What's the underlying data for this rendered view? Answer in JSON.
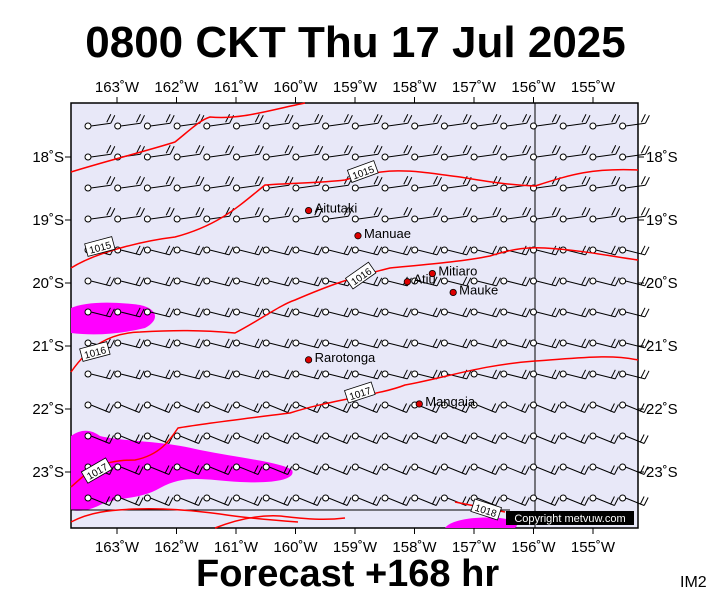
{
  "header": {
    "title": "0800 CKT Thu 17 Jul 2025"
  },
  "footer": {
    "forecast": "Forecast +168 hr",
    "image_id": "IM2"
  },
  "map": {
    "lon_labels": [
      "163˚W",
      "162˚W",
      "161˚W",
      "160˚W",
      "159˚W",
      "158˚W",
      "157˚W",
      "156˚W",
      "155˚W"
    ],
    "lat_labels": [
      "18˚S",
      "19˚S",
      "20˚S",
      "21˚S",
      "22˚S",
      "23˚S"
    ],
    "isobar_labels": [
      "1015",
      "1015",
      "1016",
      "1016",
      "1017",
      "1017",
      "1018"
    ],
    "places": [
      {
        "name": "Aitutaki",
        "lat": -18.85,
        "lon": -159.78
      },
      {
        "name": "Manuae",
        "lat": -19.25,
        "lon": -158.95
      },
      {
        "name": "Mitiaro",
        "lat": -19.85,
        "lon": -157.7
      },
      {
        "name": "Atiu",
        "lat": -19.98,
        "lon": -158.12
      },
      {
        "name": "Mauke",
        "lat": -20.15,
        "lon": -157.35
      },
      {
        "name": "Rarotonga",
        "lat": -21.22,
        "lon": -159.78
      },
      {
        "name": "Mangaia",
        "lat": -21.92,
        "lon": -157.92
      }
    ],
    "copyright": "Copyright metvuw.com",
    "colors": {
      "background": "#e8e8f8",
      "isobar": "#ff0000",
      "rain": "#ff00ff",
      "barb": "#000000",
      "place_dot": "#dd0000"
    }
  }
}
